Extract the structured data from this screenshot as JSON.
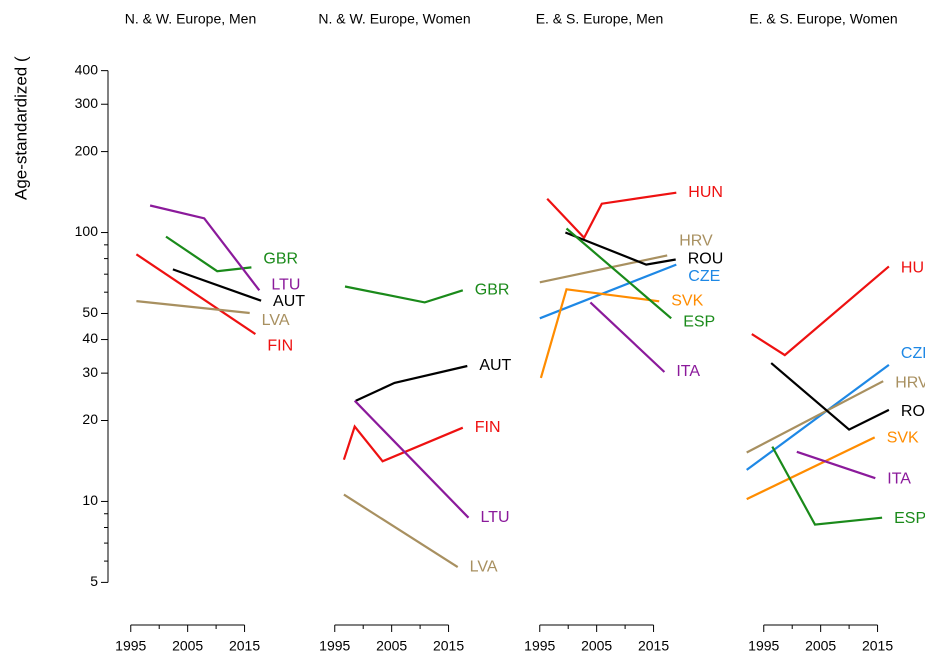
{
  "chart_data": [
    {
      "type": "line",
      "title": "N. & W. Europe, Men",
      "ylabel": "Age-standardized (",
      "log_y": true,
      "ylim": [
        4.3,
        520
      ],
      "yticks": [
        5,
        10,
        20,
        30,
        40,
        50,
        100,
        200,
        300,
        400
      ],
      "yminor": [
        6,
        7,
        8,
        9,
        60,
        70,
        80,
        90
      ],
      "xlim": [
        1991,
        2020
      ],
      "xticks": [
        1995,
        2005,
        2015
      ],
      "xminor": [
        2000,
        2010
      ],
      "series": [
        {
          "name": "GBR",
          "color": "#1a8a1a",
          "x": [
            2001.2,
            2010.2,
            2016.2
          ],
          "values": [
            96.6,
            71.8,
            74.2
          ]
        },
        {
          "name": "LTU",
          "color": "#8b1a9b",
          "x": [
            1998.4,
            2007.9,
            2017.6
          ],
          "values": [
            126,
            113,
            61
          ]
        },
        {
          "name": "AUT",
          "color": "#000000",
          "x": [
            2002.4,
            2017.9
          ],
          "values": [
            72.9,
            55.8
          ]
        },
        {
          "name": "FIN",
          "color": "#ee1111",
          "x": [
            1996,
            2016.9
          ],
          "values": [
            83,
            41.9
          ]
        },
        {
          "name": "LVA",
          "color": "#a89060",
          "x": [
            1996,
            2015.9
          ],
          "values": [
            55.6,
            50.2
          ]
        }
      ]
    },
    {
      "type": "line",
      "title": "N. & W. Europe, Women",
      "xlim": [
        1991,
        2020
      ],
      "xticks": [
        1995,
        2005,
        2015
      ],
      "xminor": [
        2000,
        2010
      ],
      "series": [
        {
          "name": "GBR",
          "color": "#1a8a1a",
          "x": [
            1996.8,
            2010.8,
            2017.5
          ],
          "values": [
            63,
            55,
            61
          ]
        },
        {
          "name": "AUT",
          "color": "#000000",
          "x": [
            1998.7,
            2005.5,
            2018.3
          ],
          "values": [
            23.7,
            27.6,
            31.9
          ]
        },
        {
          "name": "FIN",
          "color": "#ee1111",
          "x": [
            1996.6,
            1998.5,
            2003.4,
            2017.5
          ],
          "values": [
            14.3,
            19,
            14.1,
            18.8
          ]
        },
        {
          "name": "LTU",
          "color": "#8b1a9b",
          "x": [
            1998.5,
            2018.5
          ],
          "values": [
            23.7,
            8.7
          ]
        },
        {
          "name": "LVA",
          "color": "#a89060",
          "x": [
            1996.6,
            2016.6
          ],
          "values": [
            10.6,
            5.7
          ]
        }
      ]
    },
    {
      "type": "line",
      "title": "E. & S. Europe, Men",
      "xlim": [
        1991,
        2020
      ],
      "xticks": [
        1995,
        2005,
        2015
      ],
      "xminor": [
        2000,
        2010
      ],
      "series": [
        {
          "name": "HUN",
          "color": "#ee1111",
          "x": [
            1996.3,
            2002.8,
            2005.9,
            2019
          ],
          "values": [
            133.6,
            95.7,
            128,
            140.6
          ]
        },
        {
          "name": "HRV",
          "color": "#a89060",
          "x": [
            1995,
            2017.4
          ],
          "values": [
            65.3,
            82.2
          ]
        },
        {
          "name": "ROU",
          "color": "#000000",
          "x": [
            1999.5,
            2013.7,
            2018.9
          ],
          "values": [
            100,
            76,
            79.4
          ]
        },
        {
          "name": "CZE",
          "color": "#1e88e5",
          "x": [
            1995,
            2019
          ],
          "values": [
            48,
            76
          ]
        },
        {
          "name": "SVK",
          "color": "#ff8c00",
          "x": [
            1995.2,
            1999.7,
            2016
          ],
          "values": [
            28.8,
            61.5,
            55.5
          ]
        },
        {
          "name": "ESP",
          "color": "#1a8a1a",
          "x": [
            1999.7,
            2018.1
          ],
          "values": [
            103.5,
            48
          ]
        },
        {
          "name": "ITA",
          "color": "#8b1a9b",
          "x": [
            2003.9,
            2016.9
          ],
          "values": [
            55,
            30.3
          ]
        }
      ]
    },
    {
      "type": "line",
      "title": "E. & S. Europe, Women",
      "xlim": [
        1991,
        2020
      ],
      "xticks": [
        1995,
        2005,
        2015
      ],
      "xminor": [
        2000,
        2010
      ],
      "series": [
        {
          "name": "HUN",
          "color": "#ee1111",
          "x": [
            1992.9,
            1998.7,
            2017
          ],
          "values": [
            41.9,
            35,
            74.8
          ]
        },
        {
          "name": "CZE",
          "color": "#1e88e5",
          "x": [
            1992,
            2017
          ],
          "values": [
            13.1,
            32.2
          ]
        },
        {
          "name": "HRV",
          "color": "#a89060",
          "x": [
            1992,
            2016
          ],
          "values": [
            15.2,
            28
          ]
        },
        {
          "name": "ROU",
          "color": "#000000",
          "x": [
            1996.3,
            2010,
            2017
          ],
          "values": [
            32.7,
            18.5,
            21.9
          ]
        },
        {
          "name": "SVK",
          "color": "#ff8c00",
          "x": [
            1992,
            2014.5
          ],
          "values": [
            10.2,
            17.3
          ]
        },
        {
          "name": "ITA",
          "color": "#8b1a9b",
          "x": [
            2000.8,
            2014.6
          ],
          "values": [
            15.3,
            12.2
          ]
        },
        {
          "name": "ESP",
          "color": "#1a8a1a",
          "x": [
            1996.5,
            2004,
            2015.8
          ],
          "values": [
            16,
            8.2,
            8.7
          ]
        }
      ]
    }
  ]
}
